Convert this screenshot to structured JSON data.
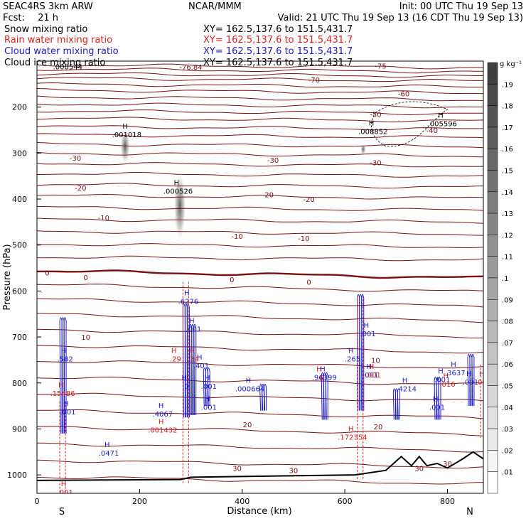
{
  "header": {
    "model": "SEAC4RS  3km ARW",
    "center": "NCAR/MMM",
    "init": "Init: 00 UTC Thu 19 Sep 13",
    "fcst_label": "Fcst:",
    "fcst_hours": "21 h",
    "valid": "Valid: 21 UTC Thu 19 Sep 13 (16 CDT Thu 19 Sep 13)"
  },
  "fields": [
    {
      "label": "Snow mixing ratio",
      "xy": "XY=  162.5,137.6 to 151.5,431.7",
      "color": "#000000"
    },
    {
      "label": "Rain water mixing ratio",
      "xy": "XY=  162.5,137.6 to 151.5,431.7",
      "color": "#d82020"
    },
    {
      "label": "Cloud water mixing ratio",
      "xy": "XY=  162.5,137.6 to 151.5,431.7",
      "color": "#1c1cc8"
    },
    {
      "label": "Cloud ice mixing ratio",
      "xy": "XY=  162.5,137.6 to 151.5,431.7",
      "color": "#000000"
    }
  ],
  "colorbar": {
    "unit": "g kg⁻¹",
    "ticks": [
      ".19",
      ".18",
      ".17",
      ".16",
      ".15",
      ".14",
      ".13",
      ".12",
      ".11",
      ".1",
      ".09",
      ".08",
      ".07",
      ".06",
      ".05",
      ".04",
      ".03",
      ".02",
      ".01"
    ],
    "shade_top": "#404040",
    "shade_bottom": "#ffffff"
  },
  "chart_data": {
    "type": "cross-section",
    "xlabel": "Distance (km)",
    "ylabel": "Pressure (hPa)",
    "xlim": [
      0,
      870
    ],
    "ylim": [
      1040,
      100
    ],
    "x_ticks": [
      "0",
      "200",
      "400",
      "600",
      "800"
    ],
    "y_ticks": [
      "200",
      "300",
      "400",
      "500",
      "600",
      "700",
      "800",
      "900",
      "1000"
    ],
    "compass_left": "S",
    "compass_right": "N",
    "temperature_contours": {
      "color": "#7a1010",
      "levels": [
        -76,
        -75,
        -70,
        -60,
        -50,
        -40,
        -30,
        -20,
        -10,
        0,
        10,
        20,
        30
      ],
      "labels": [
        {
          "text": "-76.84",
          "x": 300,
          "p": 112
        },
        {
          "text": "-75",
          "x": 670,
          "p": 110
        },
        {
          "text": "-70",
          "x": 540,
          "p": 140
        },
        {
          "text": "-60",
          "x": 715,
          "p": 170
        },
        {
          "text": "-50",
          "x": 660,
          "p": 215
        },
        {
          "text": "-40",
          "x": 770,
          "p": 250
        },
        {
          "text": "-30",
          "x": 75,
          "p": 310
        },
        {
          "text": "-30",
          "x": 460,
          "p": 315
        },
        {
          "text": "-30",
          "x": 660,
          "p": 320
        },
        {
          "text": "-20",
          "x": 85,
          "p": 375
        },
        {
          "text": "-20",
          "x": 450,
          "p": 390
        },
        {
          "text": "-20",
          "x": 530,
          "p": 400
        },
        {
          "text": "-10",
          "x": 130,
          "p": 440
        },
        {
          "text": "-10",
          "x": 390,
          "p": 480
        },
        {
          "text": "-10",
          "x": 520,
          "p": 485
        },
        {
          "text": "0",
          "x": 20,
          "p": 560
        },
        {
          "text": "0",
          "x": 95,
          "p": 570
        },
        {
          "text": "0",
          "x": 380,
          "p": 575
        },
        {
          "text": "0",
          "x": 530,
          "p": 580
        },
        {
          "text": "10",
          "x": 95,
          "p": 700
        },
        {
          "text": "10",
          "x": 660,
          "p": 750
        },
        {
          "text": "20",
          "x": 410,
          "p": 890
        },
        {
          "text": "20",
          "x": 665,
          "p": 895
        },
        {
          "text": "30",
          "x": 390,
          "p": 985
        },
        {
          "text": "30",
          "x": 500,
          "p": 990
        },
        {
          "text": "30",
          "x": 745,
          "p": 985
        },
        {
          "text": "30",
          "x": 800,
          "p": 975
        }
      ]
    },
    "snow_maxima": [
      {
        "value": ".001018",
        "x": 175,
        "p": 262
      },
      {
        "value": ".000526",
        "x": 275,
        "p": 385
      },
      {
        "value": ".000544",
        "x": 60,
        "p": 115
      }
    ],
    "ice_maxima": [
      {
        "value": ".008852",
        "x": 655,
        "p": 255
      },
      {
        "value": ".005596",
        "x": 790,
        "p": 238
      }
    ],
    "cloud_water_maxima": [
      {
        "value": ".582",
        "x": 55,
        "p": 750
      },
      {
        "value": ".001",
        "x": 60,
        "p": 865
      },
      {
        "value": ".0471",
        "x": 140,
        "p": 955
      },
      {
        "value": ".4067",
        "x": 245,
        "p": 870
      },
      {
        "value": ".6276",
        "x": 295,
        "p": 625
      },
      {
        "value": ".001",
        "x": 305,
        "p": 685
      },
      {
        "value": ".401",
        "x": 320,
        "p": 765
      },
      {
        "value": ".001",
        "x": 335,
        "p": 810
      },
      {
        "value": ".001",
        "x": 335,
        "p": 855
      },
      {
        "value": ".0",
        "x": 290,
        "p": 810
      },
      {
        "value": ".000664",
        "x": 415,
        "p": 815
      },
      {
        "value": ".96399",
        "x": 560,
        "p": 790
      },
      {
        "value": ".265",
        "x": 615,
        "p": 750
      },
      {
        "value": ".001",
        "x": 645,
        "p": 695
      },
      {
        "value": ".001",
        "x": 650,
        "p": 785
      },
      {
        "value": ".4214",
        "x": 720,
        "p": 815
      },
      {
        "value": ".001",
        "x": 790,
        "p": 795
      },
      {
        "value": ".001",
        "x": 780,
        "p": 855
      },
      {
        "value": ".3637",
        "x": 815,
        "p": 780
      },
      {
        "value": ".001",
        "x": 845,
        "p": 800
      }
    ],
    "rain_maxima": [
      {
        "value": ".15486",
        "x": 50,
        "p": 825
      },
      {
        "value": ".001",
        "x": 55,
        "p": 1040
      },
      {
        "value": ".001432",
        "x": 245,
        "p": 905
      },
      {
        "value": ".29",
        "x": 270,
        "p": 750
      },
      {
        "value": ".34",
        "x": 305,
        "p": 750
      },
      {
        "value": ".0",
        "x": 553,
        "p": 790
      },
      {
        "value": ".172354",
        "x": 615,
        "p": 920
      },
      {
        "value": ".001",
        "x": 655,
        "p": 785
      },
      {
        "value": ".016",
        "x": 800,
        "p": 805
      },
      {
        "value": ".001",
        "x": 870,
        "p": 800
      }
    ],
    "terrain": {
      "color": "#000000",
      "surface_pressure": [
        {
          "x": 0,
          "p": 1012
        },
        {
          "x": 280,
          "p": 1010
        },
        {
          "x": 300,
          "p": 1005
        },
        {
          "x": 620,
          "p": 1000
        },
        {
          "x": 680,
          "p": 990
        },
        {
          "x": 700,
          "p": 970
        },
        {
          "x": 710,
          "p": 960
        },
        {
          "x": 730,
          "p": 980
        },
        {
          "x": 745,
          "p": 960
        },
        {
          "x": 760,
          "p": 980
        },
        {
          "x": 780,
          "p": 975
        },
        {
          "x": 800,
          "p": 985
        },
        {
          "x": 830,
          "p": 965
        },
        {
          "x": 850,
          "p": 950
        },
        {
          "x": 870,
          "p": 965
        }
      ]
    }
  }
}
